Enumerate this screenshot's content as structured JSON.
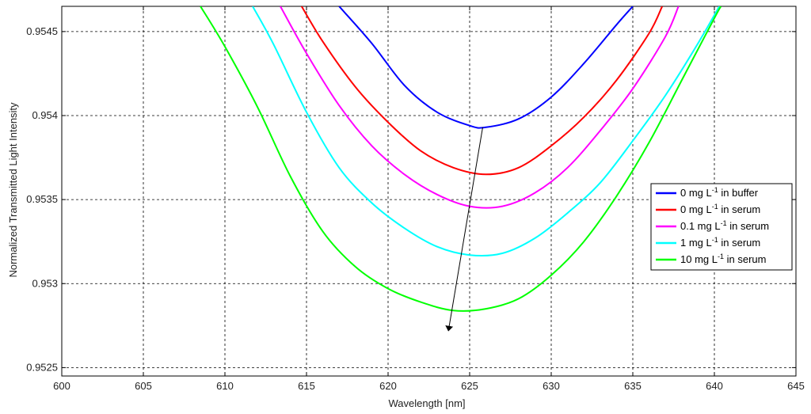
{
  "chart_data": {
    "type": "line",
    "title": "",
    "xlabel": "Wavelength [nm]",
    "ylabel": "Normalized Transmitted Light Intensity",
    "xlim": [
      600,
      645
    ],
    "ylim": [
      0.95245,
      0.95465
    ],
    "x_ticks": [
      600,
      605,
      610,
      615,
      620,
      625,
      630,
      635,
      640,
      645
    ],
    "x_tick_labels": [
      "600",
      "605",
      "610",
      "615",
      "620",
      "625",
      "630",
      "635",
      "640",
      "645"
    ],
    "y_ticks": [
      0.9525,
      0.953,
      0.9535,
      0.954,
      0.9545
    ],
    "y_tick_labels": [
      "0.9525",
      "0.953",
      "0.9535",
      "0.954",
      "0.9545"
    ],
    "grid": true,
    "legend_position": "right",
    "series": [
      {
        "name_parts": [
          "0 mg L",
          "-1",
          " in buffer"
        ],
        "color": "#0000ff",
        "x": [
          617.0,
          619.0,
          621.0,
          623.0,
          625.0,
          626.0,
          628.0,
          630.0,
          632.0,
          634.0,
          635.0
        ],
        "y": [
          0.95465,
          0.95443,
          0.95418,
          0.95402,
          0.95394,
          0.95393,
          0.95398,
          0.95411,
          0.95431,
          0.95454,
          0.95465
        ]
      },
      {
        "name_parts": [
          "0 mg L",
          "-1",
          " in serum"
        ],
        "color": "#ff0000",
        "x": [
          614.7,
          616.0,
          618.0,
          620.0,
          622.0,
          624.0,
          626.0,
          628.0,
          630.0,
          632.0,
          634.0,
          636.0,
          636.8
        ],
        "y": [
          0.95465,
          0.95444,
          0.95417,
          0.95396,
          0.95379,
          0.95369,
          0.95365,
          0.95369,
          0.95382,
          0.95399,
          0.95421,
          0.95449,
          0.95465
        ]
      },
      {
        "name_parts": [
          "0.1 mg L",
          "-1",
          " in serum"
        ],
        "color": "#ff00ff",
        "x": [
          613.4,
          615.0,
          617.0,
          619.0,
          621.0,
          623.0,
          625.0,
          627.0,
          629.0,
          631.0,
          633.0,
          635.0,
          637.0,
          637.8
        ],
        "y": [
          0.95465,
          0.95437,
          0.95406,
          0.95382,
          0.95365,
          0.95353,
          0.95346,
          0.95346,
          0.95354,
          0.95369,
          0.95391,
          0.95416,
          0.95447,
          0.95465
        ]
      },
      {
        "name_parts": [
          "1 mg L",
          "-1",
          " in serum"
        ],
        "color": "#00ffff",
        "x": [
          611.7,
          613.0,
          615.0,
          617.0,
          619.0,
          621.0,
          623.0,
          625.0,
          627.0,
          629.0,
          631.0,
          633.0,
          635.0,
          637.0,
          639.0,
          640.3
        ],
        "y": [
          0.95465,
          0.95442,
          0.95402,
          0.95369,
          0.95348,
          0.95333,
          0.95322,
          0.95317,
          0.95318,
          0.95327,
          0.95342,
          0.9536,
          0.95385,
          0.95412,
          0.95443,
          0.95465
        ]
      },
      {
        "name_parts": [
          "10 mg L",
          "-1",
          " in serum"
        ],
        "color": "#00ff00",
        "x": [
          608.5,
          610.0,
          612.0,
          614.0,
          616.0,
          618.0,
          620.0,
          622.0,
          624.0,
          626.0,
          628.0,
          630.0,
          632.0,
          634.0,
          636.0,
          638.0,
          640.0,
          640.4
        ],
        "y": [
          0.95465,
          0.95441,
          0.95405,
          0.95364,
          0.95331,
          0.9531,
          0.95297,
          0.95289,
          0.95284,
          0.95285,
          0.95291,
          0.95305,
          0.95325,
          0.95352,
          0.95384,
          0.95421,
          0.95458,
          0.95465
        ]
      }
    ],
    "annotations": [
      {
        "type": "arrow",
        "from": [
          625.8,
          0.95393
        ],
        "to": [
          623.7,
          0.95272
        ],
        "color": "#000000"
      }
    ]
  }
}
